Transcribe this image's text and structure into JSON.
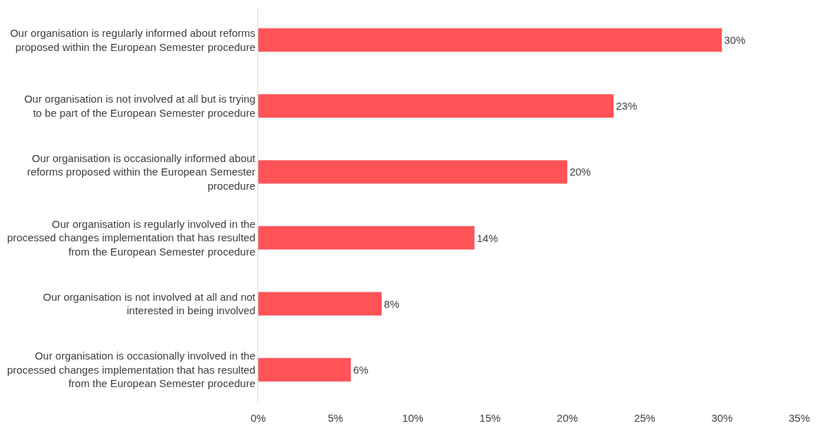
{
  "chart_data": {
    "type": "bar",
    "orientation": "horizontal",
    "categories": [
      "Our organisation is regularly informed about reforms proposed within the European Semester procedure",
      "Our organisation is not involved at all but is trying to be part of the European Semester procedure",
      "Our organisation is occasionally informed about reforms proposed within the European Semester procedure",
      "Our organisation is regularly involved in the processed changes implementation that has resulted from the European Semester procedure",
      "Our organisation is not involved at all and not interested in being involved",
      "Our organisation is occasionally involved in the processed changes implementation that has resulted from the European Semester procedure"
    ],
    "values": [
      30,
      23,
      20,
      14,
      8,
      6
    ],
    "value_labels": [
      "30%",
      "23%",
      "20%",
      "14%",
      "8%",
      "6%"
    ],
    "color": "#ff5357",
    "xlim": [
      0,
      35
    ],
    "xticks": [
      {
        "value": 0,
        "label": "0%"
      },
      {
        "value": 5,
        "label": "5%"
      },
      {
        "value": 10,
        "label": "10%"
      },
      {
        "value": 15,
        "label": "15%"
      },
      {
        "value": 20,
        "label": "20%"
      },
      {
        "value": 25,
        "label": "25%"
      },
      {
        "value": 30,
        "label": "30%"
      },
      {
        "value": 35,
        "label": "35%"
      }
    ],
    "xlabel": null
  }
}
